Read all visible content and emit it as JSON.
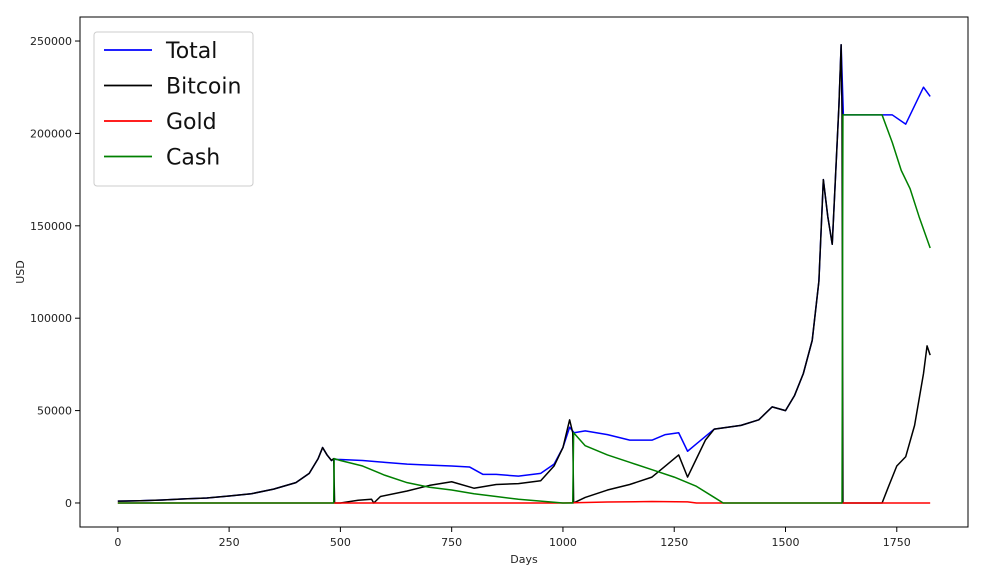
{
  "chart_data": {
    "type": "line",
    "xlabel": "Days",
    "ylabel": "USD",
    "xlim": [
      -85,
      1910
    ],
    "ylim": [
      -13000,
      263000
    ],
    "x_ticks": [
      0,
      250,
      500,
      750,
      1000,
      1250,
      1500,
      1750
    ],
    "y_ticks": [
      0,
      50000,
      100000,
      150000,
      200000,
      250000
    ],
    "grid": false,
    "legend_position": "top-left",
    "series": [
      {
        "name": "Total",
        "color": "#0000ff",
        "points": [
          [
            0,
            1000
          ],
          [
            50,
            1200
          ],
          [
            100,
            1600
          ],
          [
            150,
            2200
          ],
          [
            200,
            2700
          ],
          [
            250,
            3800
          ],
          [
            300,
            5000
          ],
          [
            350,
            7500
          ],
          [
            400,
            11000
          ],
          [
            430,
            16000
          ],
          [
            450,
            24000
          ],
          [
            460,
            30000
          ],
          [
            470,
            26000
          ],
          [
            480,
            23000
          ],
          [
            486,
            24000
          ],
          [
            490,
            23500
          ],
          [
            500,
            23500
          ],
          [
            550,
            23000
          ],
          [
            600,
            22000
          ],
          [
            650,
            21000
          ],
          [
            700,
            20500
          ],
          [
            750,
            20000
          ],
          [
            790,
            19500
          ],
          [
            820,
            15500
          ],
          [
            850,
            15500
          ],
          [
            900,
            14500
          ],
          [
            950,
            16000
          ],
          [
            980,
            21000
          ],
          [
            1000,
            30000
          ],
          [
            1015,
            41000
          ],
          [
            1025,
            38000
          ],
          [
            1050,
            39000
          ],
          [
            1100,
            37000
          ],
          [
            1150,
            34000
          ],
          [
            1200,
            34000
          ],
          [
            1230,
            37000
          ],
          [
            1260,
            38000
          ],
          [
            1280,
            28000
          ],
          [
            1300,
            32000
          ],
          [
            1320,
            36000
          ],
          [
            1340,
            40000
          ],
          [
            1370,
            41000
          ],
          [
            1400,
            42000
          ],
          [
            1440,
            45000
          ],
          [
            1470,
            52000
          ],
          [
            1500,
            50000
          ],
          [
            1520,
            58000
          ],
          [
            1540,
            70000
          ],
          [
            1560,
            88000
          ],
          [
            1575,
            120000
          ],
          [
            1585,
            175000
          ],
          [
            1595,
            155000
          ],
          [
            1605,
            140000
          ],
          [
            1612,
            175000
          ],
          [
            1620,
            215000
          ],
          [
            1625,
            248000
          ],
          [
            1630,
            210000
          ],
          [
            1650,
            210000
          ],
          [
            1700,
            210000
          ],
          [
            1740,
            210000
          ],
          [
            1770,
            205000
          ],
          [
            1790,
            215000
          ],
          [
            1810,
            225000
          ],
          [
            1825,
            220000
          ]
        ]
      },
      {
        "name": "Bitcoin",
        "color": "#000000",
        "points": [
          [
            0,
            1000
          ],
          [
            50,
            1200
          ],
          [
            100,
            1600
          ],
          [
            150,
            2200
          ],
          [
            200,
            2700
          ],
          [
            250,
            3800
          ],
          [
            300,
            5000
          ],
          [
            350,
            7500
          ],
          [
            400,
            11000
          ],
          [
            430,
            16000
          ],
          [
            450,
            24000
          ],
          [
            460,
            30000
          ],
          [
            470,
            26000
          ],
          [
            480,
            23000
          ],
          [
            485,
            24000
          ],
          [
            487,
            0
          ],
          [
            500,
            0
          ],
          [
            540,
            1500
          ],
          [
            570,
            2000
          ],
          [
            575,
            0
          ],
          [
            590,
            3500
          ],
          [
            650,
            6500
          ],
          [
            700,
            9500
          ],
          [
            750,
            11500
          ],
          [
            800,
            8000
          ],
          [
            850,
            10000
          ],
          [
            900,
            10500
          ],
          [
            950,
            12000
          ],
          [
            980,
            20000
          ],
          [
            1000,
            30000
          ],
          [
            1015,
            45000
          ],
          [
            1022,
            38000
          ],
          [
            1024,
            0
          ],
          [
            1050,
            3000
          ],
          [
            1100,
            7000
          ],
          [
            1150,
            10000
          ],
          [
            1200,
            14000
          ],
          [
            1230,
            20000
          ],
          [
            1260,
            26000
          ],
          [
            1280,
            14000
          ],
          [
            1300,
            24000
          ],
          [
            1320,
            34000
          ],
          [
            1340,
            40000
          ],
          [
            1370,
            41000
          ],
          [
            1400,
            42000
          ],
          [
            1440,
            45000
          ],
          [
            1470,
            52000
          ],
          [
            1500,
            50000
          ],
          [
            1520,
            58000
          ],
          [
            1540,
            70000
          ],
          [
            1560,
            88000
          ],
          [
            1575,
            120000
          ],
          [
            1585,
            175000
          ],
          [
            1595,
            155000
          ],
          [
            1605,
            140000
          ],
          [
            1612,
            175000
          ],
          [
            1620,
            215000
          ],
          [
            1625,
            248000
          ],
          [
            1627,
            210000
          ],
          [
            1629,
            0
          ],
          [
            1700,
            0
          ],
          [
            1717,
            0
          ],
          [
            1730,
            8000
          ],
          [
            1750,
            20000
          ],
          [
            1770,
            25000
          ],
          [
            1790,
            42000
          ],
          [
            1810,
            70000
          ],
          [
            1818,
            85000
          ],
          [
            1825,
            80000
          ]
        ]
      },
      {
        "name": "Gold",
        "color": "#ff0000",
        "points": [
          [
            0,
            0
          ],
          [
            480,
            0
          ],
          [
            500,
            0
          ],
          [
            1000,
            0
          ],
          [
            1100,
            500
          ],
          [
            1200,
            800
          ],
          [
            1280,
            600
          ],
          [
            1300,
            0
          ],
          [
            1825,
            0
          ]
        ]
      },
      {
        "name": "Cash",
        "color": "#008000",
        "points": [
          [
            0,
            0
          ],
          [
            485,
            0
          ],
          [
            486,
            24000
          ],
          [
            500,
            23000
          ],
          [
            550,
            20000
          ],
          [
            600,
            15000
          ],
          [
            650,
            11000
          ],
          [
            700,
            8500
          ],
          [
            750,
            7000
          ],
          [
            800,
            5000
          ],
          [
            850,
            3500
          ],
          [
            900,
            2000
          ],
          [
            950,
            1000
          ],
          [
            1000,
            0
          ],
          [
            1022,
            0
          ],
          [
            1024,
            38000
          ],
          [
            1050,
            31000
          ],
          [
            1100,
            26000
          ],
          [
            1150,
            22000
          ],
          [
            1200,
            18000
          ],
          [
            1250,
            14000
          ],
          [
            1300,
            9000
          ],
          [
            1340,
            3000
          ],
          [
            1360,
            0
          ],
          [
            1627,
            0
          ],
          [
            1629,
            210000
          ],
          [
            1650,
            210000
          ],
          [
            1700,
            210000
          ],
          [
            1717,
            210000
          ],
          [
            1740,
            195000
          ],
          [
            1760,
            180000
          ],
          [
            1780,
            170000
          ],
          [
            1800,
            155000
          ],
          [
            1825,
            138000
          ]
        ]
      }
    ]
  }
}
